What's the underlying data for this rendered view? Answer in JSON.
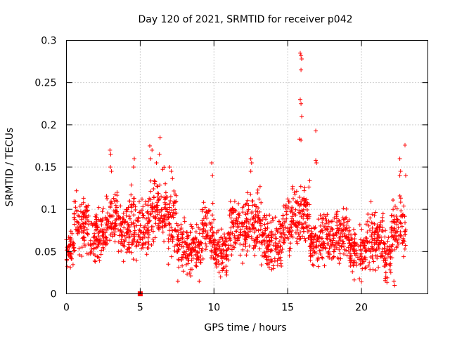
{
  "chart_data": {
    "type": "scatter",
    "title": "Day 120 of 2021, SRMTID for receiver p042",
    "xlabel": "GPS time / hours",
    "ylabel": "SRMTID / TECUs",
    "xlim": [
      0,
      24.5
    ],
    "ylim": [
      0,
      0.3
    ],
    "xticks": [
      0,
      5,
      10,
      15,
      20
    ],
    "xtick_labels": [
      "0",
      "5",
      "10",
      "15",
      "20"
    ],
    "yticks": [
      0,
      0.05,
      0.1,
      0.15,
      0.2,
      0.25,
      0.3
    ],
    "ytick_labels": [
      "0",
      "0.05",
      "0.1",
      "0.15",
      "0.2",
      "0.25",
      "0.3"
    ],
    "grid": true,
    "marker": "plus",
    "color": "#ff0000",
    "series_name": "SRMTID",
    "outlier_points": [
      {
        "x": 5.0,
        "y": 0.0,
        "marker": "square"
      },
      {
        "x": 2.95,
        "y": 0.17
      },
      {
        "x": 3.0,
        "y": 0.165
      },
      {
        "x": 2.98,
        "y": 0.15
      },
      {
        "x": 3.05,
        "y": 0.145
      },
      {
        "x": 4.6,
        "y": 0.16
      },
      {
        "x": 4.55,
        "y": 0.15
      },
      {
        "x": 5.65,
        "y": 0.175
      },
      {
        "x": 5.8,
        "y": 0.17
      },
      {
        "x": 5.7,
        "y": 0.16
      },
      {
        "x": 6.35,
        "y": 0.185
      },
      {
        "x": 6.3,
        "y": 0.165
      },
      {
        "x": 6.1,
        "y": 0.155
      },
      {
        "x": 7.0,
        "y": 0.15
      },
      {
        "x": 7.1,
        "y": 0.145
      },
      {
        "x": 7.55,
        "y": 0.015
      },
      {
        "x": 9.0,
        "y": 0.015
      },
      {
        "x": 9.85,
        "y": 0.155
      },
      {
        "x": 9.9,
        "y": 0.14
      },
      {
        "x": 10.45,
        "y": 0.02
      },
      {
        "x": 12.5,
        "y": 0.16
      },
      {
        "x": 12.55,
        "y": 0.155
      },
      {
        "x": 12.5,
        "y": 0.145
      },
      {
        "x": 15.85,
        "y": 0.285
      },
      {
        "x": 15.9,
        "y": 0.282
      },
      {
        "x": 15.95,
        "y": 0.278
      },
      {
        "x": 15.9,
        "y": 0.265
      },
      {
        "x": 15.85,
        "y": 0.23
      },
      {
        "x": 15.9,
        "y": 0.225
      },
      {
        "x": 15.95,
        "y": 0.21
      },
      {
        "x": 15.8,
        "y": 0.183
      },
      {
        "x": 15.9,
        "y": 0.182
      },
      {
        "x": 16.9,
        "y": 0.193
      },
      {
        "x": 16.9,
        "y": 0.158
      },
      {
        "x": 16.95,
        "y": 0.155
      },
      {
        "x": 22.2,
        "y": 0.015
      },
      {
        "x": 22.25,
        "y": 0.01
      },
      {
        "x": 22.6,
        "y": 0.16
      },
      {
        "x": 22.65,
        "y": 0.145
      },
      {
        "x": 22.6,
        "y": 0.14
      },
      {
        "x": 22.95,
        "y": 0.176
      },
      {
        "x": 23.0,
        "y": 0.14
      }
    ],
    "segments": [
      {
        "x_start": 0.0,
        "x_end": 0.5,
        "center": 0.055,
        "spread": 0.02
      },
      {
        "x_start": 0.5,
        "x_end": 1.5,
        "center": 0.085,
        "spread": 0.03
      },
      {
        "x_start": 1.5,
        "x_end": 2.7,
        "center": 0.07,
        "spread": 0.025
      },
      {
        "x_start": 2.7,
        "x_end": 3.5,
        "center": 0.085,
        "spread": 0.03
      },
      {
        "x_start": 3.5,
        "x_end": 4.2,
        "center": 0.075,
        "spread": 0.028
      },
      {
        "x_start": 4.2,
        "x_end": 5.0,
        "center": 0.08,
        "spread": 0.035
      },
      {
        "x_start": 5.0,
        "x_end": 5.6,
        "center": 0.075,
        "spread": 0.035
      },
      {
        "x_start": 5.6,
        "x_end": 6.9,
        "center": 0.1,
        "spread": 0.035
      },
      {
        "x_start": 6.9,
        "x_end": 7.5,
        "center": 0.085,
        "spread": 0.035
      },
      {
        "x_start": 7.5,
        "x_end": 9.2,
        "center": 0.055,
        "spread": 0.025
      },
      {
        "x_start": 9.2,
        "x_end": 10.0,
        "center": 0.075,
        "spread": 0.03
      },
      {
        "x_start": 10.0,
        "x_end": 11.0,
        "center": 0.05,
        "spread": 0.025
      },
      {
        "x_start": 11.0,
        "x_end": 12.2,
        "center": 0.075,
        "spread": 0.03
      },
      {
        "x_start": 12.2,
        "x_end": 13.2,
        "center": 0.08,
        "spread": 0.035
      },
      {
        "x_start": 13.2,
        "x_end": 14.6,
        "center": 0.06,
        "spread": 0.03
      },
      {
        "x_start": 14.6,
        "x_end": 15.3,
        "center": 0.08,
        "spread": 0.03
      },
      {
        "x_start": 15.3,
        "x_end": 16.5,
        "center": 0.095,
        "spread": 0.03
      },
      {
        "x_start": 16.5,
        "x_end": 17.3,
        "center": 0.06,
        "spread": 0.025
      },
      {
        "x_start": 17.3,
        "x_end": 18.2,
        "center": 0.065,
        "spread": 0.03
      },
      {
        "x_start": 18.2,
        "x_end": 19.2,
        "center": 0.07,
        "spread": 0.03
      },
      {
        "x_start": 19.2,
        "x_end": 20.3,
        "center": 0.05,
        "spread": 0.025
      },
      {
        "x_start": 20.3,
        "x_end": 21.5,
        "center": 0.065,
        "spread": 0.03
      },
      {
        "x_start": 21.5,
        "x_end": 22.0,
        "center": 0.045,
        "spread": 0.025
      },
      {
        "x_start": 22.0,
        "x_end": 23.0,
        "center": 0.075,
        "spread": 0.035
      }
    ],
    "points_per_hour": 90
  }
}
